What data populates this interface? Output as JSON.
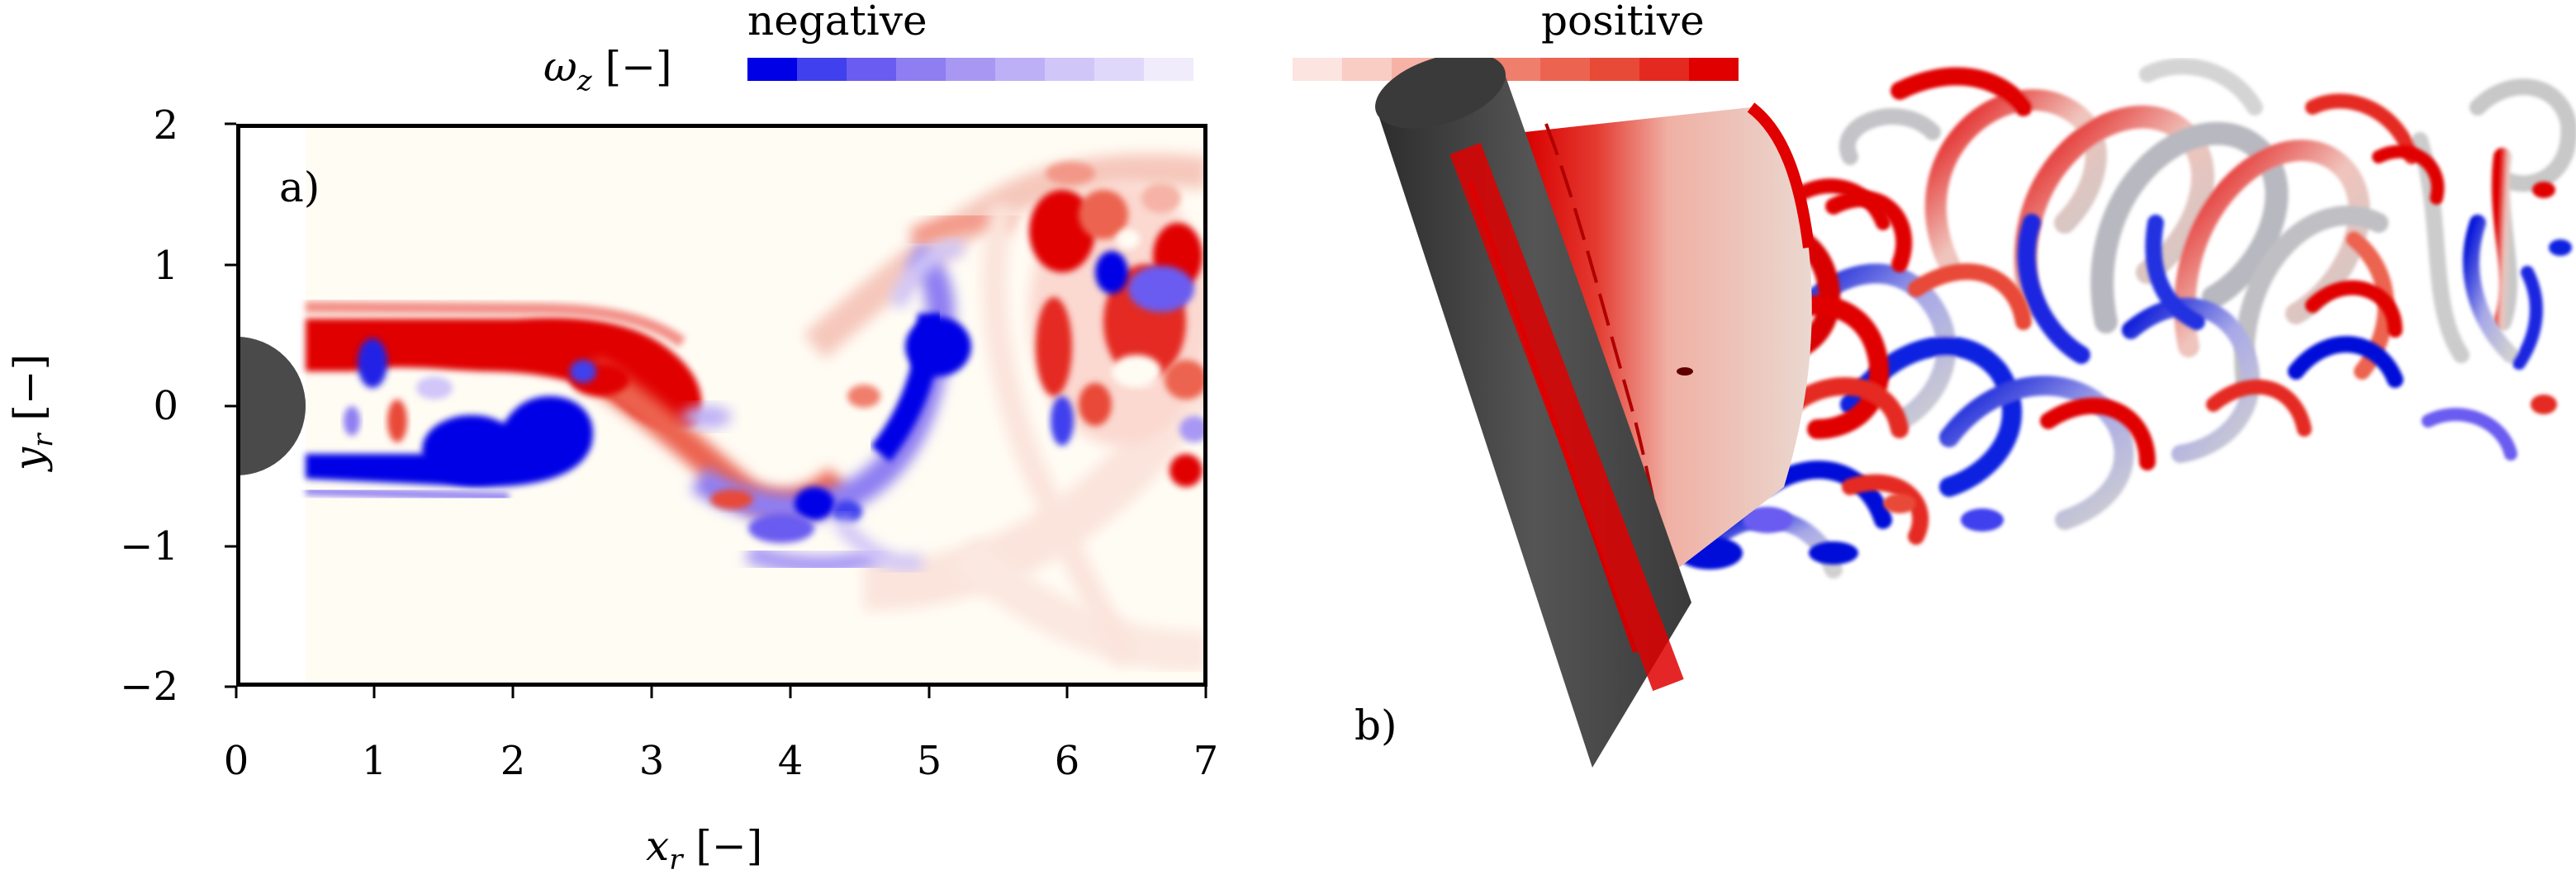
{
  "colorbar": {
    "variable_label": "ω",
    "variable_subscript": "z",
    "variable_unit": "[−]",
    "negative_label": "negative",
    "positive_label": "positive",
    "negative_colors": [
      "#0000e6",
      "#4040ee",
      "#6a5cf0",
      "#8e7ef2",
      "#a898f4",
      "#bdb0f6",
      "#d0c6f8",
      "#e0d8fa",
      "#f0ecfc"
    ],
    "positive_colors": [
      "#fce4e0",
      "#f9ccc4",
      "#f6b2a6",
      "#f39888",
      "#f07e6c",
      "#ec6450",
      "#e84a38",
      "#e42a20",
      "#e00000"
    ]
  },
  "panel_a": {
    "tag": "a)",
    "xlabel_var": "x",
    "xlabel_sub": "r",
    "xlabel_unit": "[−]",
    "ylabel_var": "y",
    "ylabel_sub": "r",
    "ylabel_unit": "[−]",
    "xticks": [
      "0",
      "1",
      "2",
      "3",
      "4",
      "5",
      "6",
      "7"
    ],
    "yticks": [
      "2",
      "1",
      "0",
      "−1",
      "−2"
    ],
    "xlim": [
      0,
      7
    ],
    "ylim": [
      -2,
      2
    ]
  },
  "panel_b": {
    "tag": "b)"
  }
}
